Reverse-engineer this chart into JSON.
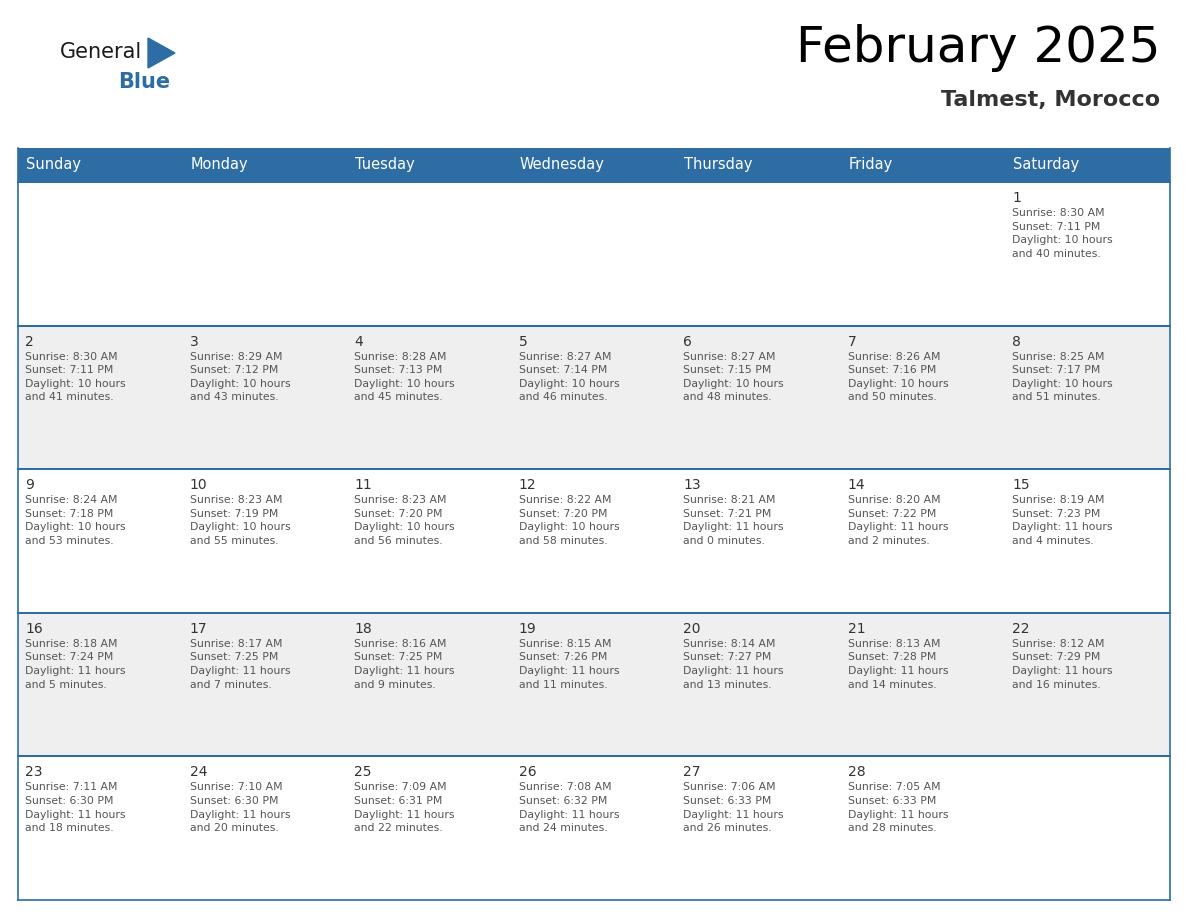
{
  "title": "February 2025",
  "subtitle": "Talmest, Morocco",
  "header_bg": "#2E6DA4",
  "header_text_color": "#FFFFFF",
  "cell_bg_white": "#FFFFFF",
  "cell_bg_gray": "#EFEFEF",
  "border_color": "#2E6DA4",
  "text_color_day": "#333333",
  "text_color_info": "#555555",
  "day_headers": [
    "Sunday",
    "Monday",
    "Tuesday",
    "Wednesday",
    "Thursday",
    "Friday",
    "Saturday"
  ],
  "calendar_data": [
    [
      {
        "day": "",
        "info": ""
      },
      {
        "day": "",
        "info": ""
      },
      {
        "day": "",
        "info": ""
      },
      {
        "day": "",
        "info": ""
      },
      {
        "day": "",
        "info": ""
      },
      {
        "day": "",
        "info": ""
      },
      {
        "day": "1",
        "info": "Sunrise: 8:30 AM\nSunset: 7:11 PM\nDaylight: 10 hours\nand 40 minutes."
      }
    ],
    [
      {
        "day": "2",
        "info": "Sunrise: 8:30 AM\nSunset: 7:11 PM\nDaylight: 10 hours\nand 41 minutes."
      },
      {
        "day": "3",
        "info": "Sunrise: 8:29 AM\nSunset: 7:12 PM\nDaylight: 10 hours\nand 43 minutes."
      },
      {
        "day": "4",
        "info": "Sunrise: 8:28 AM\nSunset: 7:13 PM\nDaylight: 10 hours\nand 45 minutes."
      },
      {
        "day": "5",
        "info": "Sunrise: 8:27 AM\nSunset: 7:14 PM\nDaylight: 10 hours\nand 46 minutes."
      },
      {
        "day": "6",
        "info": "Sunrise: 8:27 AM\nSunset: 7:15 PM\nDaylight: 10 hours\nand 48 minutes."
      },
      {
        "day": "7",
        "info": "Sunrise: 8:26 AM\nSunset: 7:16 PM\nDaylight: 10 hours\nand 50 minutes."
      },
      {
        "day": "8",
        "info": "Sunrise: 8:25 AM\nSunset: 7:17 PM\nDaylight: 10 hours\nand 51 minutes."
      }
    ],
    [
      {
        "day": "9",
        "info": "Sunrise: 8:24 AM\nSunset: 7:18 PM\nDaylight: 10 hours\nand 53 minutes."
      },
      {
        "day": "10",
        "info": "Sunrise: 8:23 AM\nSunset: 7:19 PM\nDaylight: 10 hours\nand 55 minutes."
      },
      {
        "day": "11",
        "info": "Sunrise: 8:23 AM\nSunset: 7:20 PM\nDaylight: 10 hours\nand 56 minutes."
      },
      {
        "day": "12",
        "info": "Sunrise: 8:22 AM\nSunset: 7:20 PM\nDaylight: 10 hours\nand 58 minutes."
      },
      {
        "day": "13",
        "info": "Sunrise: 8:21 AM\nSunset: 7:21 PM\nDaylight: 11 hours\nand 0 minutes."
      },
      {
        "day": "14",
        "info": "Sunrise: 8:20 AM\nSunset: 7:22 PM\nDaylight: 11 hours\nand 2 minutes."
      },
      {
        "day": "15",
        "info": "Sunrise: 8:19 AM\nSunset: 7:23 PM\nDaylight: 11 hours\nand 4 minutes."
      }
    ],
    [
      {
        "day": "16",
        "info": "Sunrise: 8:18 AM\nSunset: 7:24 PM\nDaylight: 11 hours\nand 5 minutes."
      },
      {
        "day": "17",
        "info": "Sunrise: 8:17 AM\nSunset: 7:25 PM\nDaylight: 11 hours\nand 7 minutes."
      },
      {
        "day": "18",
        "info": "Sunrise: 8:16 AM\nSunset: 7:25 PM\nDaylight: 11 hours\nand 9 minutes."
      },
      {
        "day": "19",
        "info": "Sunrise: 8:15 AM\nSunset: 7:26 PM\nDaylight: 11 hours\nand 11 minutes."
      },
      {
        "day": "20",
        "info": "Sunrise: 8:14 AM\nSunset: 7:27 PM\nDaylight: 11 hours\nand 13 minutes."
      },
      {
        "day": "21",
        "info": "Sunrise: 8:13 AM\nSunset: 7:28 PM\nDaylight: 11 hours\nand 14 minutes."
      },
      {
        "day": "22",
        "info": "Sunrise: 8:12 AM\nSunset: 7:29 PM\nDaylight: 11 hours\nand 16 minutes."
      }
    ],
    [
      {
        "day": "23",
        "info": "Sunrise: 7:11 AM\nSunset: 6:30 PM\nDaylight: 11 hours\nand 18 minutes."
      },
      {
        "day": "24",
        "info": "Sunrise: 7:10 AM\nSunset: 6:30 PM\nDaylight: 11 hours\nand 20 minutes."
      },
      {
        "day": "25",
        "info": "Sunrise: 7:09 AM\nSunset: 6:31 PM\nDaylight: 11 hours\nand 22 minutes."
      },
      {
        "day": "26",
        "info": "Sunrise: 7:08 AM\nSunset: 6:32 PM\nDaylight: 11 hours\nand 24 minutes."
      },
      {
        "day": "27",
        "info": "Sunrise: 7:06 AM\nSunset: 6:33 PM\nDaylight: 11 hours\nand 26 minutes."
      },
      {
        "day": "28",
        "info": "Sunrise: 7:05 AM\nSunset: 6:33 PM\nDaylight: 11 hours\nand 28 minutes."
      },
      {
        "day": "",
        "info": ""
      }
    ]
  ],
  "logo_general_color": "#1a1a1a",
  "logo_blue_color": "#2E6DA4",
  "logo_triangle_color": "#2E6DA4",
  "figwidth": 11.88,
  "figheight": 9.18,
  "dpi": 100
}
